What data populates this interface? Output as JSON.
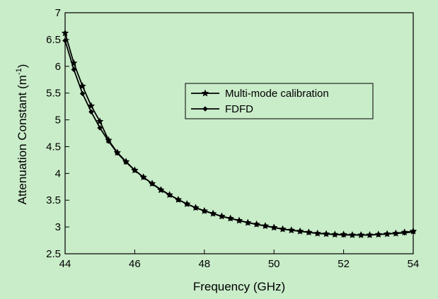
{
  "chart_data": {
    "type": "line",
    "xlabel": "Frequency (GHz)",
    "ylabel_main": "Attenuation Constant (m",
    "ylabel_sup": "-1",
    "ylabel_close": ")",
    "xlim": [
      44,
      54
    ],
    "ylim": [
      2.5,
      7
    ],
    "xticks": [
      "44",
      "46",
      "48",
      "50",
      "52",
      "54"
    ],
    "yticks": [
      "2.5",
      "3",
      "3.5",
      "4",
      "4.5",
      "5",
      "5.5",
      "6",
      "6.5",
      "7"
    ],
    "grid": false,
    "legend_position": "center-right",
    "series": [
      {
        "name": "Multi-mode calibration",
        "marker": "star",
        "color": "#000000",
        "x": [
          44.0,
          44.25,
          44.5,
          44.75,
          45.0,
          45.25,
          45.5,
          45.75,
          46.0,
          46.25,
          46.5,
          46.75,
          47.0,
          47.25,
          47.5,
          47.75,
          48.0,
          48.25,
          48.5,
          48.75,
          49.0,
          49.25,
          49.5,
          49.75,
          50.0,
          50.25,
          50.5,
          50.75,
          51.0,
          51.25,
          51.5,
          51.75,
          52.0,
          52.25,
          52.5,
          52.75,
          53.0,
          53.25,
          53.5,
          53.75,
          54.0
        ],
        "y": [
          6.62,
          6.06,
          5.63,
          5.26,
          4.97,
          4.62,
          4.39,
          4.22,
          4.06,
          3.93,
          3.81,
          3.69,
          3.6,
          3.51,
          3.43,
          3.36,
          3.3,
          3.25,
          3.2,
          3.16,
          3.12,
          3.08,
          3.05,
          3.02,
          2.99,
          2.96,
          2.94,
          2.92,
          2.9,
          2.88,
          2.87,
          2.86,
          2.86,
          2.85,
          2.85,
          2.85,
          2.86,
          2.87,
          2.88,
          2.9,
          2.92
        ]
      },
      {
        "name": "FDFD",
        "marker": "diamond",
        "color": "#000000",
        "x": [
          44.0,
          44.25,
          44.5,
          44.75,
          45.0,
          45.25,
          45.5,
          45.75,
          46.0,
          46.25,
          46.5,
          46.75,
          47.0,
          47.25,
          47.5,
          47.75,
          48.0,
          48.25,
          48.5,
          48.75,
          49.0,
          49.25,
          49.5,
          49.75,
          50.0,
          50.25,
          50.5,
          50.75,
          51.0,
          51.25,
          51.5,
          51.75,
          52.0,
          52.25,
          52.5,
          52.75,
          53.0,
          53.25,
          53.5,
          53.75,
          54.0
        ],
        "y": [
          6.48,
          5.94,
          5.49,
          5.15,
          4.85,
          4.6,
          4.38,
          4.21,
          4.06,
          3.93,
          3.81,
          3.7,
          3.6,
          3.51,
          3.43,
          3.36,
          3.3,
          3.25,
          3.2,
          3.16,
          3.12,
          3.08,
          3.05,
          3.02,
          2.99,
          2.96,
          2.94,
          2.92,
          2.9,
          2.88,
          2.87,
          2.86,
          2.85,
          2.85,
          2.85,
          2.85,
          2.86,
          2.87,
          2.88,
          2.89,
          2.91
        ]
      }
    ]
  }
}
